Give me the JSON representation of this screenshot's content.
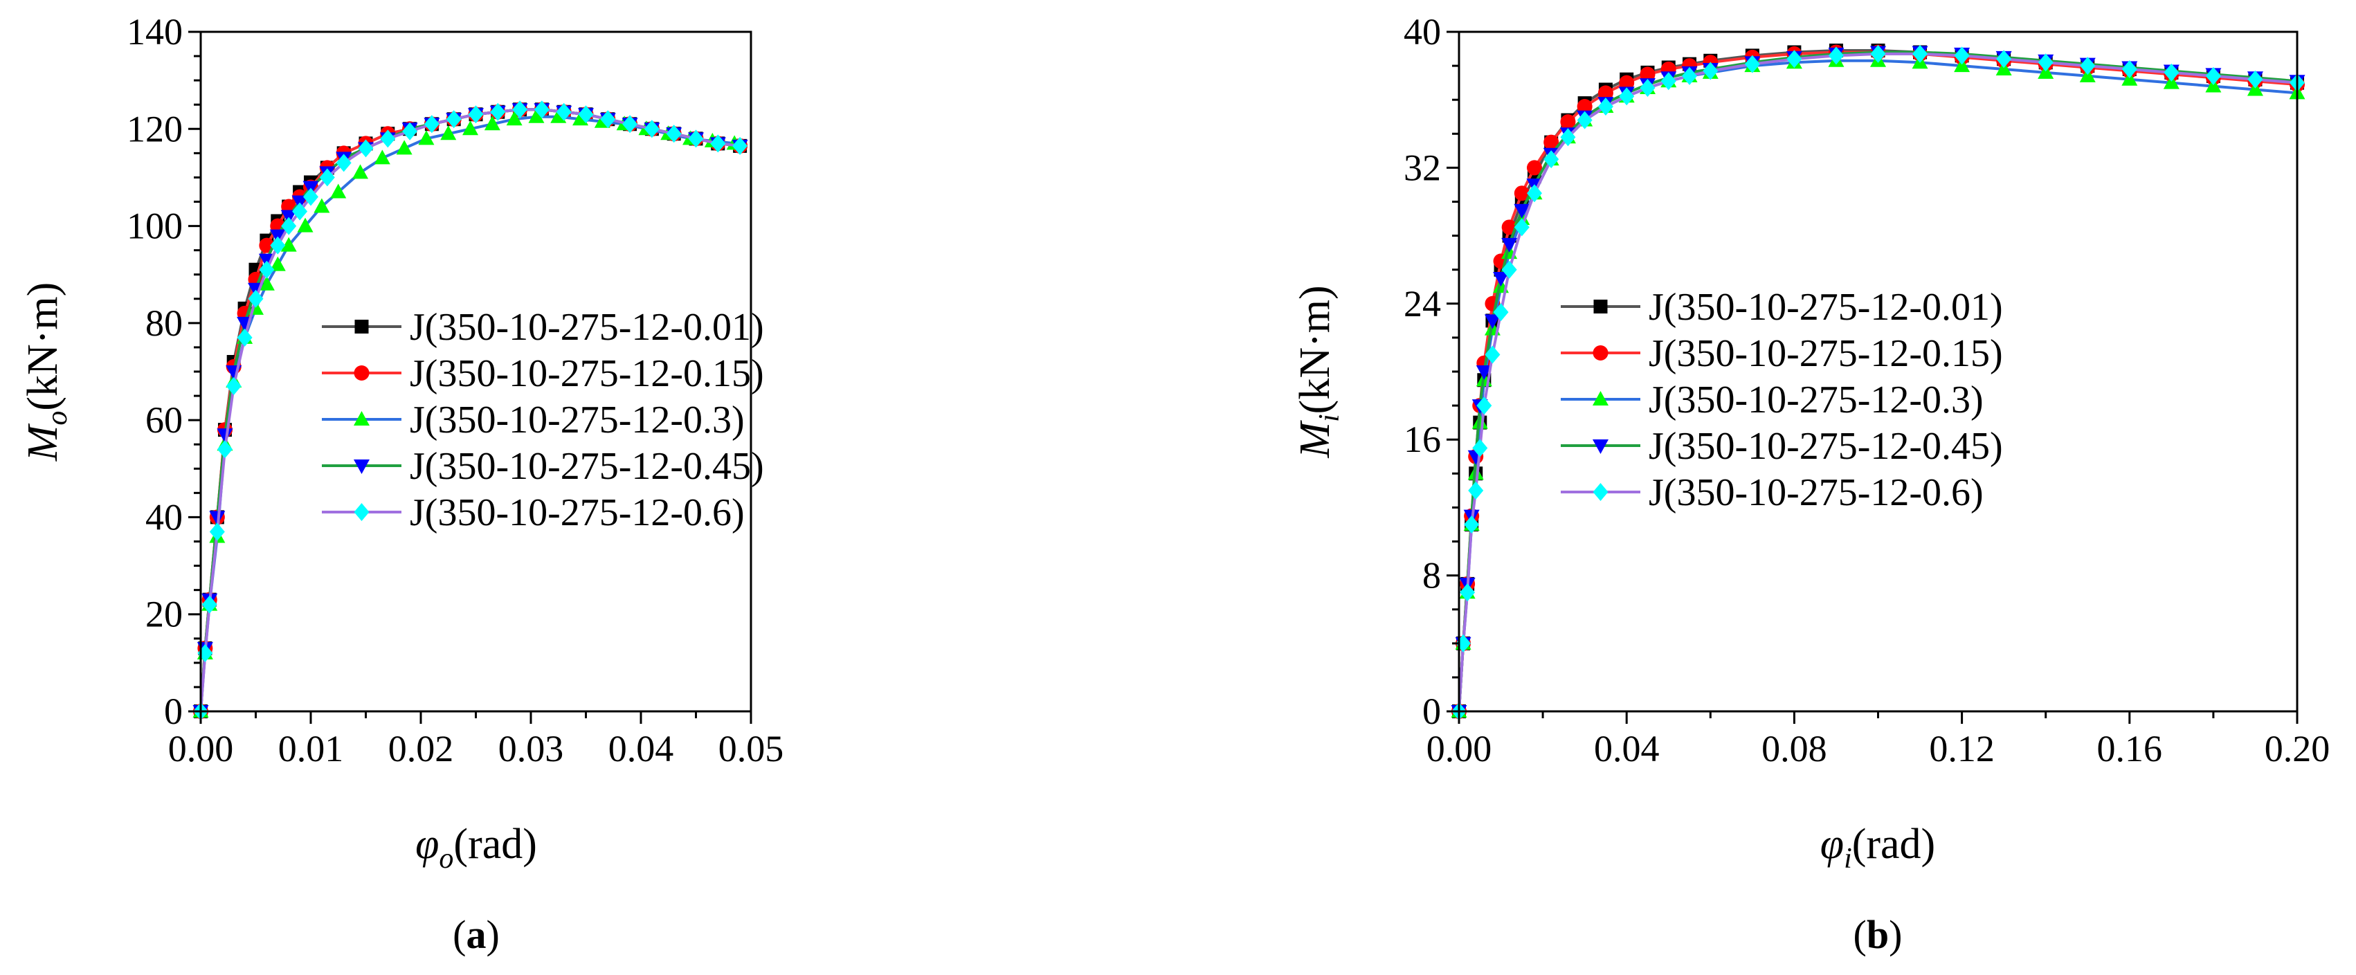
{
  "chart_data": [
    {
      "type": "line",
      "panel_label": "a",
      "xlabel": {
        "symbol": "φ",
        "subscript": "o",
        "unit": "(rad)"
      },
      "ylabel": {
        "symbol": "M",
        "subscript": "o",
        "unit": "(kN·m)"
      },
      "xlim": [
        0,
        0.05
      ],
      "ylim": [
        0,
        140
      ],
      "xticks": [
        0,
        0.01,
        0.02,
        0.03,
        0.04,
        0.05
      ],
      "xtick_labels": [
        "0.00",
        "0.01",
        "0.02",
        "0.03",
        "0.04",
        "0.05"
      ],
      "yticks": [
        0,
        20,
        40,
        60,
        80,
        100,
        120,
        140
      ],
      "ytick_labels": [
        "0",
        "20",
        "40",
        "60",
        "80",
        "100",
        "120",
        "140"
      ],
      "legend_position": "center-right",
      "series": [
        {
          "name": "J(350-10-275-12-0.01)",
          "color": "#000000",
          "line_color": "#555555",
          "marker": "square",
          "x": [
            0,
            0.0004,
            0.0008,
            0.0015,
            0.0022,
            0.003,
            0.004,
            0.005,
            0.006,
            0.007,
            0.008,
            0.009,
            0.01,
            0.0115,
            0.013,
            0.015,
            0.017,
            0.019,
            0.021,
            0.023,
            0.025,
            0.027,
            0.029,
            0.031,
            0.033,
            0.035,
            0.037,
            0.039,
            0.041,
            0.043,
            0.045,
            0.047,
            0.049
          ],
          "y": [
            0,
            13,
            23,
            40,
            58,
            72,
            83,
            91,
            97,
            101,
            104,
            107,
            109,
            112,
            115,
            117,
            119,
            120,
            121,
            122,
            123,
            123.5,
            124,
            124,
            123.5,
            123,
            122,
            121,
            120,
            119,
            118,
            117,
            116.5
          ]
        },
        {
          "name": "J(350-10-275-12-0.15)",
          "color": "#ff0000",
          "line_color": "#ff3030",
          "marker": "circle",
          "x": [
            0,
            0.0004,
            0.0008,
            0.0015,
            0.0022,
            0.003,
            0.004,
            0.005,
            0.006,
            0.007,
            0.008,
            0.009,
            0.01,
            0.0115,
            0.013,
            0.015,
            0.017,
            0.019,
            0.021,
            0.023,
            0.025,
            0.027,
            0.029,
            0.031,
            0.033,
            0.035,
            0.037,
            0.039,
            0.041,
            0.043,
            0.045,
            0.047,
            0.049
          ],
          "y": [
            0,
            13,
            23,
            40,
            58,
            71,
            82,
            89,
            96,
            100,
            104,
            106,
            108,
            112,
            115,
            117,
            119,
            120,
            121,
            122,
            123,
            123.5,
            124,
            124,
            123.5,
            123,
            122,
            121,
            120,
            119,
            118,
            117,
            116.5
          ]
        },
        {
          "name": "J(350-10-275-12-0.3)",
          "color": "#00ff00",
          "line_color": "#3070e0",
          "marker": "triangle-up",
          "x": [
            0,
            0.0004,
            0.0008,
            0.0015,
            0.0022,
            0.003,
            0.004,
            0.005,
            0.006,
            0.007,
            0.008,
            0.0095,
            0.011,
            0.0125,
            0.0145,
            0.0165,
            0.0185,
            0.0205,
            0.0225,
            0.0245,
            0.0265,
            0.0285,
            0.0305,
            0.0325,
            0.0345,
            0.0365,
            0.0385,
            0.0405,
            0.0425,
            0.0445,
            0.0465,
            0.0485
          ],
          "y": [
            0,
            12,
            22,
            36,
            55,
            68,
            77,
            83,
            88,
            92,
            96,
            100,
            104,
            107,
            111,
            114,
            116,
            118,
            119,
            120,
            121,
            122,
            122.5,
            122.5,
            122,
            121.5,
            121,
            120,
            119,
            118,
            117.5,
            117
          ]
        },
        {
          "name": "J(350-10-275-12-0.45)",
          "color": "#0000ff",
          "line_color": "#20a040",
          "marker": "triangle-down",
          "x": [
            0,
            0.0004,
            0.0008,
            0.0015,
            0.0022,
            0.003,
            0.004,
            0.005,
            0.006,
            0.007,
            0.008,
            0.009,
            0.01,
            0.0115,
            0.013,
            0.015,
            0.017,
            0.019,
            0.021,
            0.023,
            0.025,
            0.027,
            0.029,
            0.031,
            0.033,
            0.035,
            0.037,
            0.039,
            0.041,
            0.043,
            0.045,
            0.047,
            0.049
          ],
          "y": [
            0,
            13,
            23,
            40,
            57,
            70,
            80,
            87,
            93,
            98,
            102,
            105,
            108,
            111,
            114,
            116,
            118,
            120,
            121,
            122,
            123,
            123.5,
            124,
            124,
            123.5,
            123,
            122,
            121,
            120,
            119,
            118,
            117,
            116.5
          ]
        },
        {
          "name": "J(350-10-275-12-0.6)",
          "color": "#00ffff",
          "line_color": "#a070e0",
          "marker": "diamond",
          "x": [
            0,
            0.0004,
            0.0008,
            0.0015,
            0.0022,
            0.003,
            0.004,
            0.005,
            0.006,
            0.007,
            0.008,
            0.009,
            0.01,
            0.0115,
            0.013,
            0.015,
            0.017,
            0.019,
            0.021,
            0.023,
            0.025,
            0.027,
            0.029,
            0.031,
            0.033,
            0.035,
            0.037,
            0.039,
            0.041,
            0.043,
            0.045,
            0.047,
            0.049
          ],
          "y": [
            0,
            12,
            22,
            37,
            54,
            67,
            77,
            85,
            91,
            96,
            100,
            103,
            106,
            110,
            113,
            116,
            118,
            119.5,
            121,
            122,
            123,
            123.5,
            124,
            124,
            123.5,
            123,
            122,
            121,
            120,
            119,
            118,
            117,
            116.5
          ]
        }
      ]
    },
    {
      "type": "line",
      "panel_label": "b",
      "xlabel": {
        "symbol": "φ",
        "subscript": "i",
        "unit": "(rad)"
      },
      "ylabel": {
        "symbol": "M",
        "subscript": "i",
        "unit": "(kN·m)"
      },
      "xlim": [
        0,
        0.2
      ],
      "ylim": [
        0,
        40
      ],
      "xticks": [
        0,
        0.04,
        0.08,
        0.12,
        0.16,
        0.2
      ],
      "xtick_labels": [
        "0.00",
        "0.04",
        "0.08",
        "0.12",
        "0.16",
        "0.20"
      ],
      "yticks": [
        0,
        8,
        16,
        24,
        32,
        40
      ],
      "ytick_labels": [
        "0",
        "8",
        "16",
        "24",
        "32",
        "40"
      ],
      "legend_position": "center-right",
      "series": [
        {
          "name": "J(350-10-275-12-0.01)",
          "color": "#000000",
          "line_color": "#555555",
          "marker": "square",
          "x": [
            0,
            0.001,
            0.002,
            0.003,
            0.004,
            0.005,
            0.006,
            0.008,
            0.01,
            0.012,
            0.015,
            0.018,
            0.022,
            0.026,
            0.03,
            0.035,
            0.04,
            0.045,
            0.05,
            0.055,
            0.06,
            0.07,
            0.08,
            0.09,
            0.1,
            0.11,
            0.12,
            0.13,
            0.14,
            0.15,
            0.16,
            0.17,
            0.18,
            0.19,
            0.2
          ],
          "y": [
            0,
            4,
            7.5,
            11,
            14,
            17,
            19.5,
            23,
            26,
            28,
            30,
            31.5,
            33.5,
            34.8,
            35.8,
            36.6,
            37.2,
            37.6,
            37.9,
            38.1,
            38.3,
            38.6,
            38.8,
            38.9,
            38.9,
            38.8,
            38.6,
            38.4,
            38.2,
            38,
            37.8,
            37.6,
            37.4,
            37.2,
            37
          ]
        },
        {
          "name": "J(350-10-275-12-0.15)",
          "color": "#ff0000",
          "line_color": "#ff3030",
          "marker": "circle",
          "x": [
            0,
            0.001,
            0.002,
            0.003,
            0.004,
            0.005,
            0.006,
            0.008,
            0.01,
            0.012,
            0.015,
            0.018,
            0.022,
            0.026,
            0.03,
            0.035,
            0.04,
            0.045,
            0.05,
            0.055,
            0.06,
            0.07,
            0.08,
            0.09,
            0.1,
            0.11,
            0.12,
            0.13,
            0.14,
            0.15,
            0.16,
            0.17,
            0.18,
            0.19,
            0.2
          ],
          "y": [
            0,
            4,
            7.5,
            11.5,
            15,
            18,
            20.5,
            24,
            26.5,
            28.5,
            30.5,
            32,
            33.5,
            34.7,
            35.6,
            36.4,
            37,
            37.5,
            37.8,
            38,
            38.2,
            38.5,
            38.7,
            38.8,
            38.8,
            38.7,
            38.5,
            38.3,
            38.1,
            37.9,
            37.7,
            37.5,
            37.3,
            37.1,
            36.9
          ]
        },
        {
          "name": "J(350-10-275-12-0.3)",
          "color": "#00ff00",
          "line_color": "#3070e0",
          "marker": "triangle-up",
          "x": [
            0,
            0.001,
            0.002,
            0.003,
            0.004,
            0.005,
            0.006,
            0.008,
            0.01,
            0.012,
            0.015,
            0.018,
            0.022,
            0.026,
            0.03,
            0.035,
            0.04,
            0.045,
            0.05,
            0.055,
            0.06,
            0.07,
            0.08,
            0.09,
            0.1,
            0.11,
            0.12,
            0.13,
            0.14,
            0.15,
            0.16,
            0.17,
            0.18,
            0.19,
            0.2
          ],
          "y": [
            0,
            4,
            7,
            11,
            14,
            17,
            19.5,
            22.5,
            25,
            27,
            29,
            30.5,
            32.5,
            33.8,
            34.8,
            35.6,
            36.2,
            36.7,
            37.1,
            37.4,
            37.6,
            38,
            38.2,
            38.3,
            38.3,
            38.2,
            38,
            37.8,
            37.6,
            37.4,
            37.2,
            37,
            36.8,
            36.6,
            36.4
          ]
        },
        {
          "name": "J(350-10-275-12-0.45)",
          "color": "#0000ff",
          "line_color": "#20a040",
          "marker": "triangle-down",
          "x": [
            0,
            0.001,
            0.002,
            0.003,
            0.004,
            0.005,
            0.006,
            0.008,
            0.01,
            0.012,
            0.015,
            0.018,
            0.022,
            0.026,
            0.03,
            0.035,
            0.04,
            0.045,
            0.05,
            0.055,
            0.06,
            0.07,
            0.08,
            0.09,
            0.1,
            0.11,
            0.12,
            0.13,
            0.14,
            0.15,
            0.16,
            0.17,
            0.18,
            0.19,
            0.2
          ],
          "y": [
            0,
            4,
            7.5,
            11.5,
            15,
            18,
            20,
            23,
            25.5,
            27.5,
            29.5,
            31,
            32.8,
            34,
            35,
            35.8,
            36.4,
            36.9,
            37.3,
            37.6,
            37.8,
            38.2,
            38.5,
            38.7,
            38.8,
            38.8,
            38.7,
            38.5,
            38.3,
            38.1,
            37.9,
            37.7,
            37.5,
            37.3,
            37.1
          ]
        },
        {
          "name": "J(350-10-275-12-0.6)",
          "color": "#00ffff",
          "line_color": "#a070e0",
          "marker": "diamond",
          "x": [
            0,
            0.001,
            0.002,
            0.003,
            0.004,
            0.005,
            0.006,
            0.008,
            0.01,
            0.012,
            0.015,
            0.018,
            0.022,
            0.026,
            0.03,
            0.035,
            0.04,
            0.045,
            0.05,
            0.055,
            0.06,
            0.07,
            0.08,
            0.09,
            0.1,
            0.11,
            0.12,
            0.13,
            0.14,
            0.15,
            0.16,
            0.17,
            0.18,
            0.19,
            0.2
          ],
          "y": [
            0,
            4,
            7,
            11,
            13,
            15.5,
            18,
            21,
            23.5,
            26,
            28.5,
            30.5,
            32.5,
            33.8,
            34.8,
            35.6,
            36.2,
            36.7,
            37.1,
            37.4,
            37.7,
            38.1,
            38.4,
            38.6,
            38.7,
            38.7,
            38.6,
            38.4,
            38.2,
            38,
            37.8,
            37.6,
            37.4,
            37.2,
            37
          ]
        }
      ]
    }
  ]
}
